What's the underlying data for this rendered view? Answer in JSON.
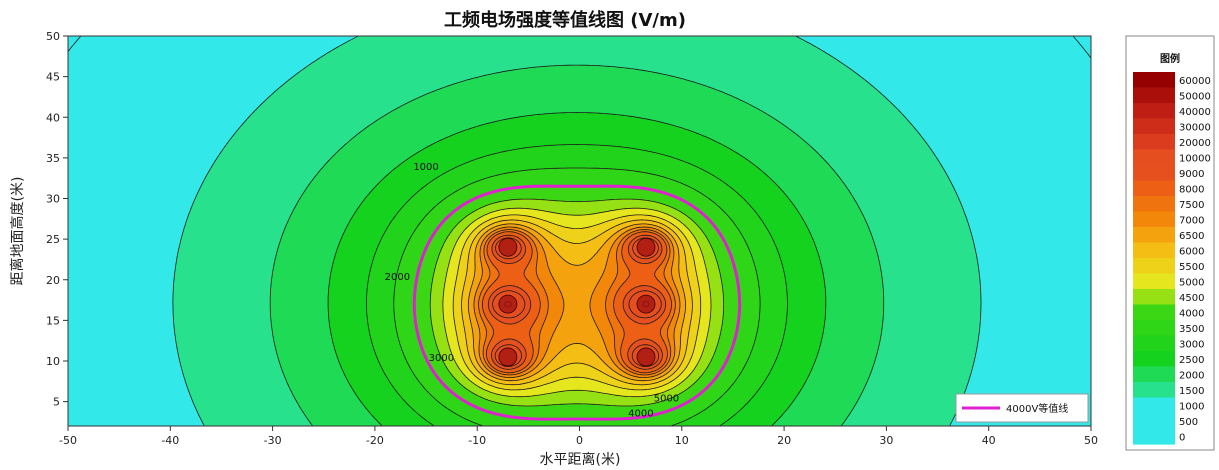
{
  "chart_data": {
    "type": "heatmap",
    "title": "工频电场强度等值线图 (V/m)",
    "xlabel": "水平距离(米)",
    "ylabel": "距离地面高度(米)",
    "xlim": [
      -50,
      50
    ],
    "ylim": [
      2,
      50
    ],
    "x_ticks": [
      -50,
      -40,
      -30,
      -20,
      -10,
      0,
      10,
      20,
      30,
      40,
      50
    ],
    "y_ticks": [
      5,
      10,
      15,
      20,
      25,
      30,
      35,
      40,
      45,
      50
    ],
    "conductors": [
      {
        "x": -7,
        "y": 24
      },
      {
        "x": -7,
        "y": 17
      },
      {
        "x": -7,
        "y": 10.5
      },
      {
        "x": 6.5,
        "y": 24
      },
      {
        "x": 6.5,
        "y": 17
      },
      {
        "x": 6.5,
        "y": 10.5
      }
    ],
    "contour_labels": [
      {
        "text": "1000",
        "x": -15,
        "y": 33.5
      },
      {
        "text": "2000",
        "x": -17.8,
        "y": 20
      },
      {
        "text": "3000",
        "x": -13.5,
        "y": 10
      },
      {
        "text": "5000",
        "x": 8.5,
        "y": 5
      },
      {
        "text": "4000",
        "x": 6,
        "y": 3.2
      }
    ],
    "highlight_line": {
      "name": "4000V等值线",
      "value": 4000,
      "color": "#e020d0"
    },
    "legend": {
      "title": "图例",
      "levels": [
        "60000",
        "50000",
        "40000",
        "30000",
        "20000",
        "10000",
        "9000",
        "8000",
        "7500",
        "7000",
        "6500",
        "6000",
        "5500",
        "5000",
        "4500",
        "4000",
        "3500",
        "3000",
        "2500",
        "2000",
        "1500",
        "1000",
        "500",
        "0"
      ],
      "highlight_level": "4000",
      "highlight_color": "#e020d0",
      "position": "right"
    }
  }
}
